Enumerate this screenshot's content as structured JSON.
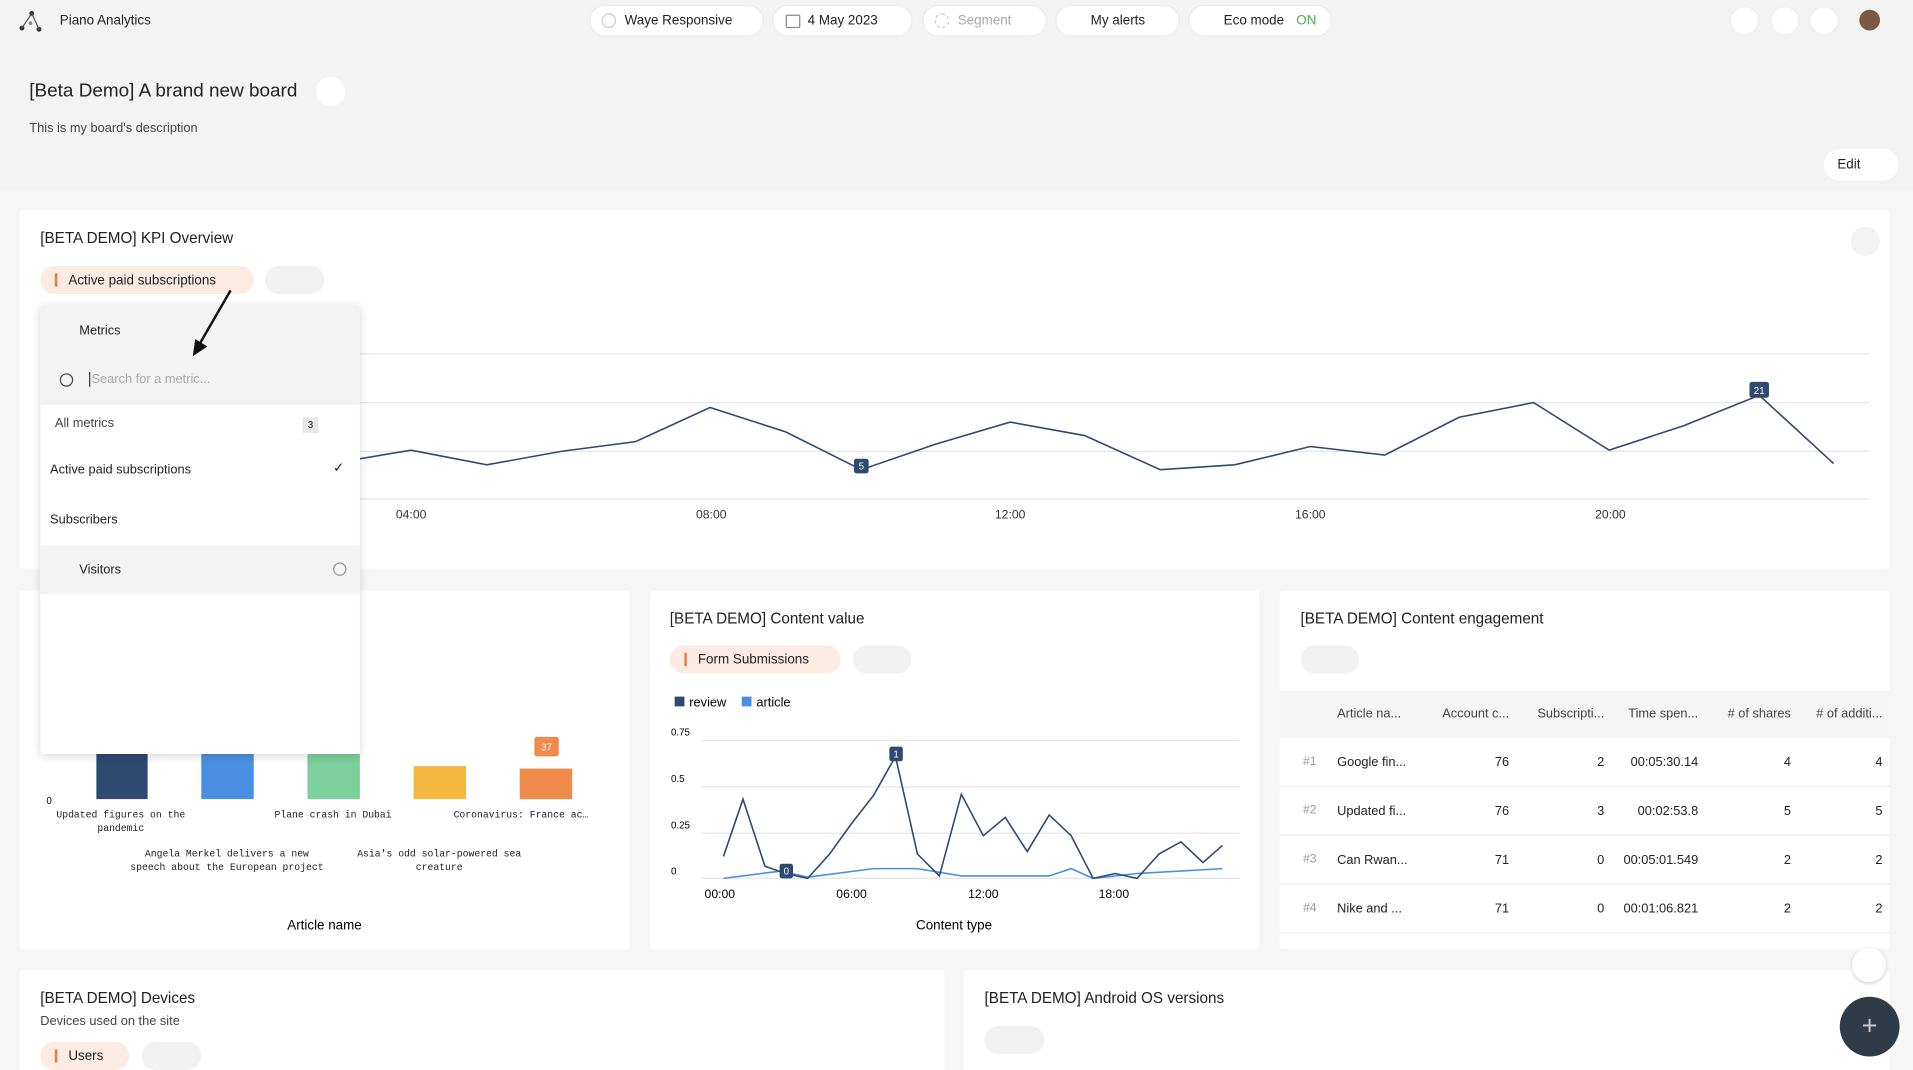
{
  "header": {
    "app_name": "Piano Analytics",
    "site": "Waye Responsive",
    "date": "4 May 2023",
    "segment": "Segment",
    "alerts": "My alerts",
    "eco": "Eco mode",
    "eco_state": "ON"
  },
  "board": {
    "title": "[Beta Demo] A brand new board",
    "description": "This is my board's description",
    "edit": "Edit"
  },
  "kpi": {
    "title": "[BETA DEMO] KPI Overview",
    "metric": "Active paid subscriptions",
    "x_labels": [
      "04:00",
      "08:00",
      "12:00",
      "16:00",
      "20:00"
    ],
    "point_labels": [
      "5",
      "21"
    ]
  },
  "dropdown": {
    "header": "Metrics",
    "search_placeholder": "Search for a metric...",
    "all": "All metrics",
    "count": "3",
    "items": [
      "Active paid subscriptions",
      "Subscribers",
      "Visitors"
    ]
  },
  "bar_panel": {
    "y_label": "0",
    "categories": [
      "Updated figures on the pandemic",
      "Angela Merkel delivers a new speech about the European project",
      "Plane crash in Dubai",
      "Asia's odd solar-powered sea creature",
      "Coronavirus: France ac…"
    ],
    "value_label": "37",
    "x_axis_title": "Article name"
  },
  "content_value": {
    "title": "[BETA DEMO] Content value",
    "metric": "Form Submissions",
    "legend": [
      "review",
      "article"
    ],
    "y_labels": [
      "0.75",
      "0.5",
      "0.25",
      "0"
    ],
    "x_labels": [
      "00:00",
      "06:00",
      "12:00",
      "18:00"
    ],
    "point_labels": [
      "0",
      "1"
    ],
    "x_axis_title": "Content type"
  },
  "engagement": {
    "title": "[BETA DEMO] Content engagement",
    "columns": [
      "Article na...",
      "Account c...",
      "Subscripti...",
      "Time spen...",
      "# of shares",
      "# of additi..."
    ],
    "rows": [
      [
        "#1",
        "Google fin...",
        "76",
        "2",
        "00:05:30.14",
        "4",
        "4"
      ],
      [
        "#2",
        "Updated fi...",
        "76",
        "3",
        "00:02:53.8",
        "5",
        "5"
      ],
      [
        "#3",
        "Can Rwan...",
        "71",
        "0",
        "00:05:01.549",
        "2",
        "2"
      ],
      [
        "#4",
        "Nike and ...",
        "71",
        "0",
        "00:01:06.821",
        "2",
        "2"
      ]
    ]
  },
  "devices": {
    "title": "[BETA DEMO] Devices",
    "subtitle": "Devices used on the site",
    "metric": "Users"
  },
  "android": {
    "title": "[BETA DEMO] Android OS versions"
  }
}
